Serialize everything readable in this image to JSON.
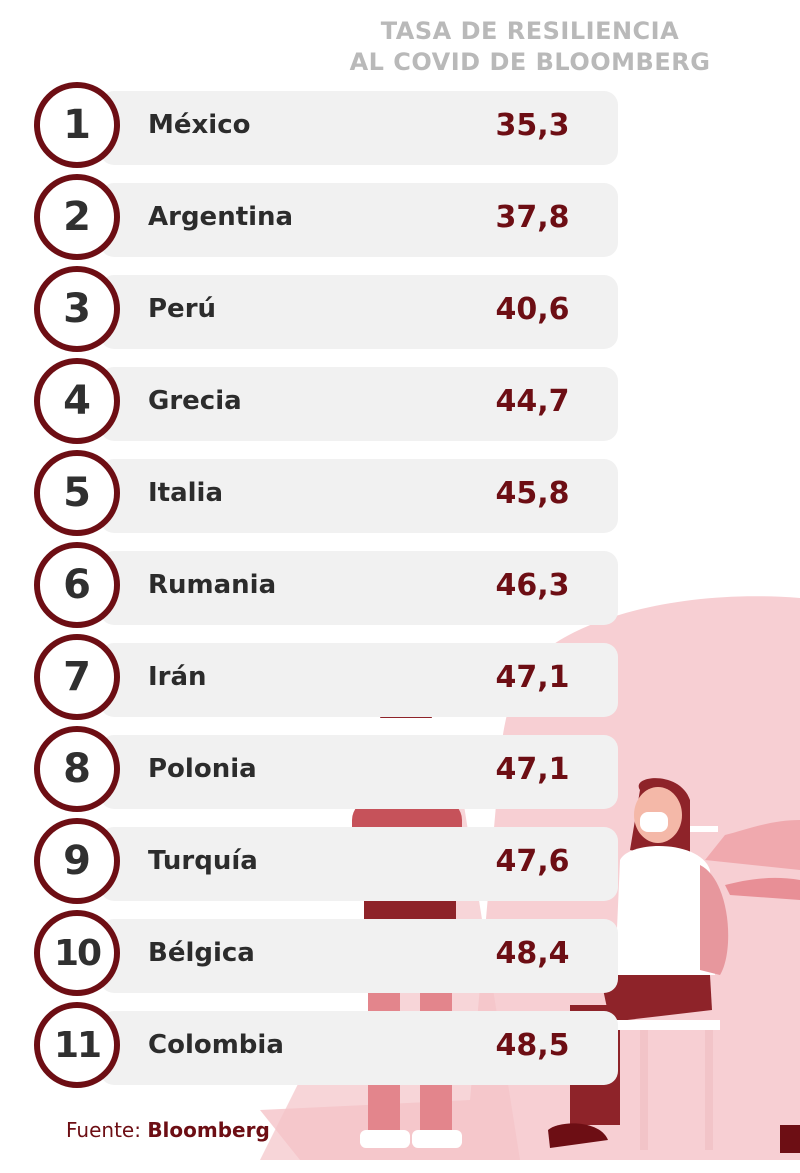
{
  "title_lines": [
    "TASA DE RESILIENCIA",
    "AL COVID DE BLOOMBERG"
  ],
  "source": {
    "label": "Fuente:",
    "name": "Bloomberg"
  },
  "colors": {
    "accent": "#6d0e14",
    "bar": "#f1f1f1",
    "title": "#b9b9b9",
    "illustration_pink": "#f7cfd3"
  },
  "chart_data": {
    "type": "table",
    "title": "TASA DE RESILIENCIA AL COVID DE BLOOMBERG",
    "columns": [
      "rank",
      "country",
      "value"
    ],
    "rows": [
      {
        "rank": "1",
        "country": "México",
        "value": "35,3"
      },
      {
        "rank": "2",
        "country": "Argentina",
        "value": "37,8"
      },
      {
        "rank": "3",
        "country": "Perú",
        "value": "40,6"
      },
      {
        "rank": "4",
        "country": "Grecia",
        "value": "44,7"
      },
      {
        "rank": "5",
        "country": "Italia",
        "value": "45,8"
      },
      {
        "rank": "6",
        "country": "Rumania",
        "value": "46,3"
      },
      {
        "rank": "7",
        "country": "Irán",
        "value": "47,1"
      },
      {
        "rank": "8",
        "country": "Polonia",
        "value": "47,1"
      },
      {
        "rank": "9",
        "country": "Turquía",
        "value": "47,6"
      },
      {
        "rank": "10",
        "country": "Bélgica",
        "value": "48,4"
      },
      {
        "rank": "11",
        "country": "Colombia",
        "value": "48,5"
      }
    ]
  }
}
